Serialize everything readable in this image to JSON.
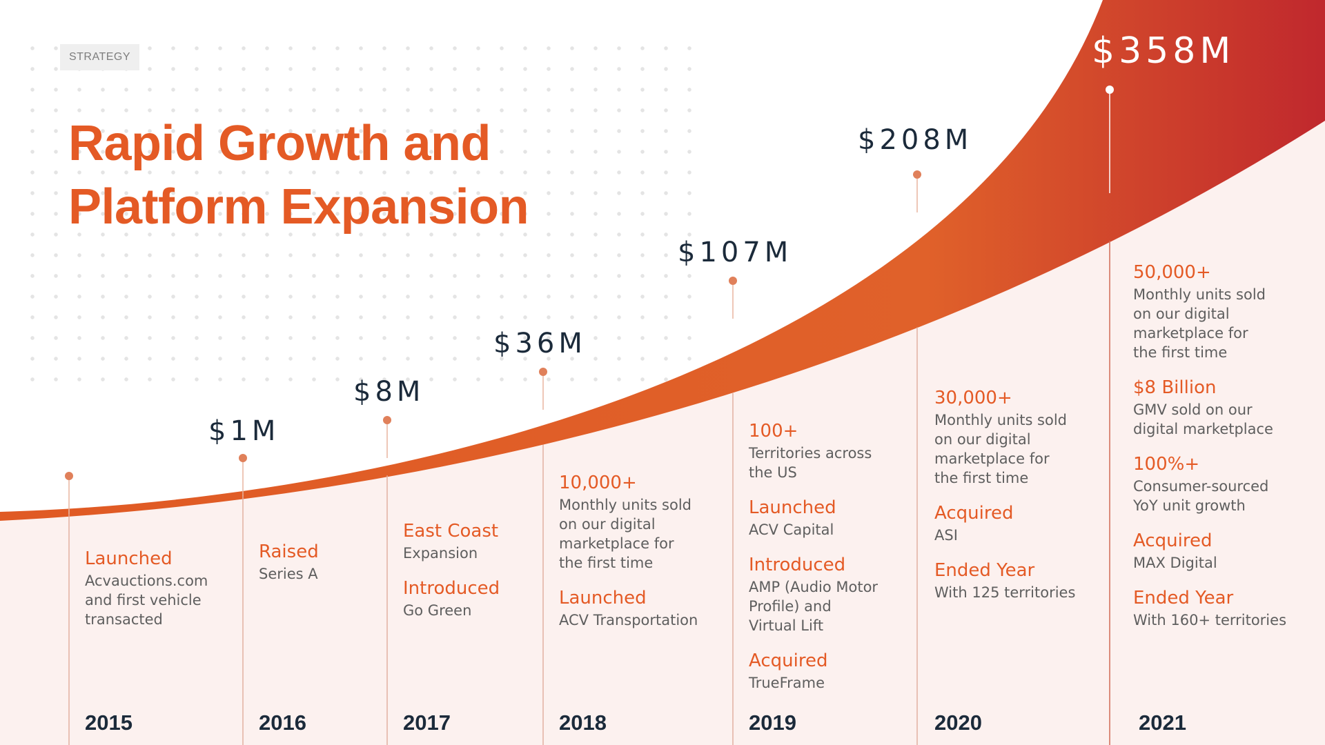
{
  "tag": "STRATEGY",
  "title": {
    "line1": "Rapid Growth and",
    "line2": "Platform Expansion"
  },
  "colors": {
    "accent": "#e45a25",
    "curve_dark": "#c0282d",
    "navy": "#1b2a3a",
    "panel": "#fcf1ef",
    "marker": "#e0805a"
  },
  "chart_data": {
    "type": "area",
    "categories": [
      "2015",
      "2016",
      "2017",
      "2018",
      "2019",
      "2020",
      "2021"
    ],
    "values": [
      null,
      1,
      8,
      36,
      107,
      208,
      358
    ],
    "value_labels": [
      "",
      "$1M",
      "$8M",
      "$36M",
      "$107M",
      "$208M",
      "$358M"
    ],
    "unit": "$M",
    "grid": false,
    "legend": "none"
  },
  "milestones": [
    {
      "year": "2015",
      "items": [
        {
          "head": "Launched",
          "text": "Acvauctions.com\nand first vehicle\ntransacted"
        }
      ]
    },
    {
      "year": "2016",
      "items": [
        {
          "head": "Raised",
          "text": "Series A"
        }
      ]
    },
    {
      "year": "2017",
      "items": [
        {
          "head": "East Coast",
          "text": "Expansion"
        },
        {
          "head": "Introduced",
          "text": "Go Green"
        }
      ]
    },
    {
      "year": "2018",
      "items": [
        {
          "head": "10,000+",
          "text": "Monthly units sold\non our digital\nmarketplace for\nthe first time"
        },
        {
          "head": "Launched",
          "text": "ACV Transportation"
        }
      ]
    },
    {
      "year": "2019",
      "items": [
        {
          "head": "100+",
          "text": "Territories across\nthe US"
        },
        {
          "head": "Launched",
          "text": "ACV Capital"
        },
        {
          "head": "Introduced",
          "text": "AMP (Audio Motor\nProfile) and\nVirtual Lift"
        },
        {
          "head": "Acquired",
          "text": "TrueFrame"
        }
      ]
    },
    {
      "year": "2020",
      "items": [
        {
          "head": "30,000+",
          "text": "Monthly units sold\non our digital\nmarketplace for\nthe first time"
        },
        {
          "head": "Acquired",
          "text": "ASI"
        },
        {
          "head": "Ended Year",
          "text": "With 125 territories"
        }
      ]
    },
    {
      "year": "2021",
      "items": [
        {
          "head": "50,000+",
          "text": "Monthly units sold\non our digital\nmarketplace for\nthe first time"
        },
        {
          "head": "$8 Billion",
          "text": "GMV sold on our\ndigital marketplace"
        },
        {
          "head": "100%+",
          "text": "Consumer-sourced\nYoY unit growth"
        },
        {
          "head": "Acquired",
          "text": "MAX Digital"
        },
        {
          "head": "Ended Year",
          "text": "With 160+ territories"
        }
      ]
    }
  ]
}
